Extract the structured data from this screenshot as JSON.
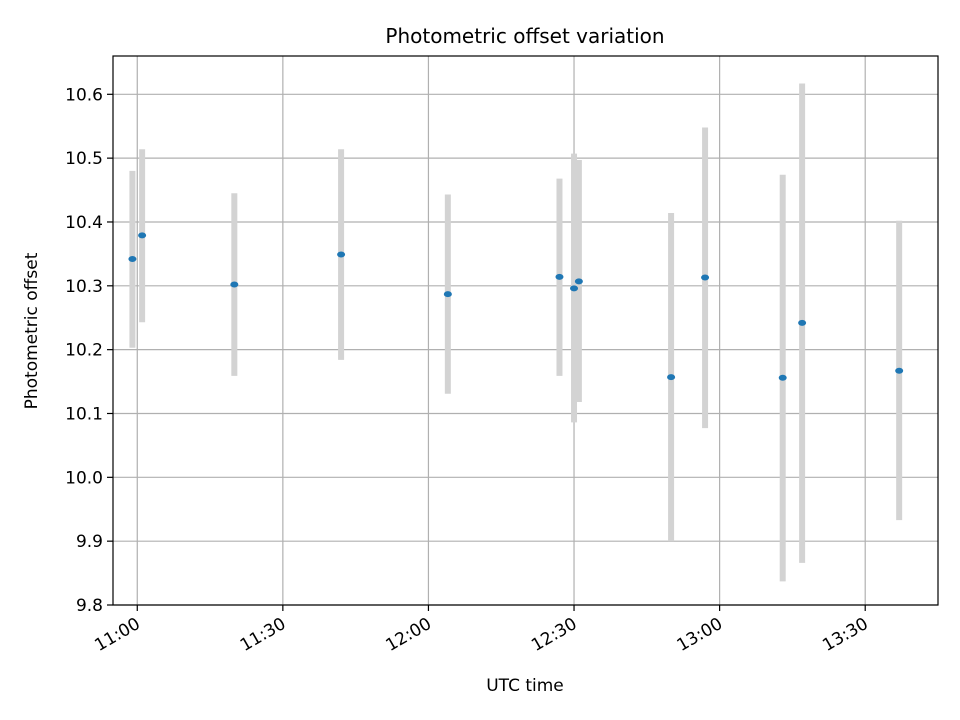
{
  "chart_data": {
    "type": "scatter",
    "title": "Photometric offset variation",
    "xlabel": "UTC time",
    "ylabel": "Photometric offset",
    "grid": true,
    "xlim": [
      "10:55",
      "13:45"
    ],
    "ylim": [
      9.8,
      10.66
    ],
    "x_ticks": [
      "11:00",
      "11:30",
      "12:00",
      "12:30",
      "13:00",
      "13:30"
    ],
    "y_ticks": [
      9.8,
      9.9,
      10.0,
      10.1,
      10.2,
      10.3,
      10.4,
      10.5,
      10.6
    ],
    "y_tick_labels": [
      "9.8",
      "9.9",
      "10.0",
      "10.1",
      "10.2",
      "10.3",
      "10.4",
      "10.5",
      "10.6"
    ],
    "marker_color": "#1f77b4",
    "errorbar_color": "#d3d3d3",
    "points": [
      {
        "time": "10:59",
        "y": 10.342,
        "ylow": 10.203,
        "yhigh": 10.48
      },
      {
        "time": "11:01",
        "y": 10.379,
        "ylow": 10.243,
        "yhigh": 10.514
      },
      {
        "time": "11:20",
        "y": 10.302,
        "ylow": 10.159,
        "yhigh": 10.445
      },
      {
        "time": "11:42",
        "y": 10.349,
        "ylow": 10.184,
        "yhigh": 10.514
      },
      {
        "time": "12:04",
        "y": 10.287,
        "ylow": 10.131,
        "yhigh": 10.443
      },
      {
        "time": "12:27",
        "y": 10.314,
        "ylow": 10.159,
        "yhigh": 10.468
      },
      {
        "time": "12:30",
        "y": 10.296,
        "ylow": 10.086,
        "yhigh": 10.507
      },
      {
        "time": "12:31",
        "y": 10.307,
        "ylow": 10.118,
        "yhigh": 10.497
      },
      {
        "time": "12:50",
        "y": 10.157,
        "ylow": 9.9,
        "yhigh": 10.414
      },
      {
        "time": "12:57",
        "y": 10.313,
        "ylow": 10.077,
        "yhigh": 10.548
      },
      {
        "time": "13:13",
        "y": 10.156,
        "ylow": 9.837,
        "yhigh": 10.474
      },
      {
        "time": "13:17",
        "y": 10.242,
        "ylow": 9.866,
        "yhigh": 10.617
      },
      {
        "time": "13:37",
        "y": 10.167,
        "ylow": 9.933,
        "yhigh": 10.402
      }
    ]
  }
}
